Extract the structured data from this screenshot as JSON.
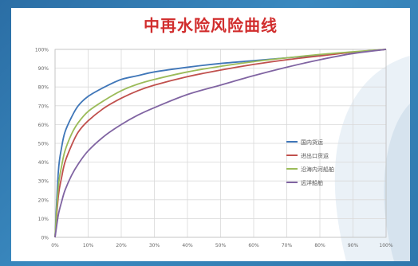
{
  "chart_data": {
    "type": "line",
    "title": "中再水险风险曲线",
    "xlabel": "",
    "ylabel": "",
    "xlim": [
      0,
      100
    ],
    "ylim": [
      0,
      100
    ],
    "grid": true,
    "legend_position": "right",
    "x_ticks": [
      "0%",
      "10%",
      "20%",
      "30%",
      "40%",
      "50%",
      "60%",
      "70%",
      "80%",
      "90%",
      "100%"
    ],
    "y_ticks": [
      "0%",
      "10%",
      "20%",
      "30%",
      "40%",
      "50%",
      "60%",
      "70%",
      "80%",
      "90%",
      "100%"
    ],
    "x": [
      0,
      1,
      2,
      3,
      5,
      7,
      10,
      15,
      20,
      25,
      30,
      40,
      50,
      60,
      70,
      80,
      90,
      100
    ],
    "series": [
      {
        "name": "国内货运",
        "color": "#3f76b8",
        "values": [
          0,
          35,
          48,
          56,
          64,
          70,
          75,
          80,
          84,
          86,
          88,
          90.5,
          92.5,
          94,
          95.5,
          97,
          98.5,
          100
        ]
      },
      {
        "name": "进出口货运",
        "color": "#c0504d",
        "values": [
          0,
          22,
          32,
          40,
          49,
          56,
          62,
          69,
          74,
          78,
          81,
          85.5,
          89,
          92,
          94.5,
          96.5,
          98.5,
          100
        ]
      },
      {
        "name": "沿海内河船舶",
        "color": "#9bbb59",
        "values": [
          0,
          27,
          38,
          46,
          55,
          61,
          67,
          73,
          78,
          81.5,
          84,
          88,
          91,
          93.5,
          95.5,
          97.3,
          98.7,
          100
        ]
      },
      {
        "name": "远洋船舶",
        "color": "#8064a2",
        "values": [
          0,
          12,
          19,
          25,
          33,
          39,
          46,
          54,
          60,
          65,
          69,
          76,
          81,
          86,
          90.5,
          94.5,
          97.8,
          100
        ]
      }
    ]
  }
}
